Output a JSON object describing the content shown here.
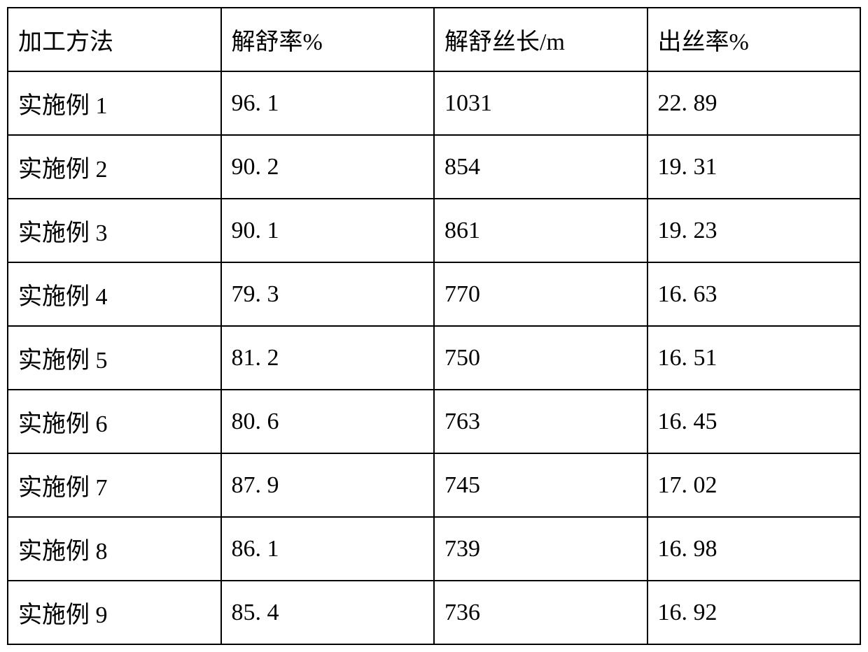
{
  "table": {
    "border_color": "#000000",
    "background_color": "#ffffff",
    "text_color": "#000000",
    "font_family": "SimSun",
    "font_size": 34,
    "border_width": 2,
    "cell_padding_vertical": 20,
    "cell_padding_horizontal": 14,
    "column_widths": [
      "25%",
      "25%",
      "25%",
      "25%"
    ],
    "columns": [
      "加工方法",
      "解舒率%",
      "解舒丝长/m",
      "出丝率%"
    ],
    "rows": [
      [
        "实施例 1",
        "96. 1",
        "1031",
        "22. 89"
      ],
      [
        "实施例 2",
        "90. 2",
        "854",
        "19. 31"
      ],
      [
        "实施例 3",
        "90. 1",
        "861",
        "19. 23"
      ],
      [
        "实施例 4",
        "79. 3",
        "770",
        "16. 63"
      ],
      [
        "实施例 5",
        "81. 2",
        "750",
        "16. 51"
      ],
      [
        "实施例 6",
        "80. 6",
        "763",
        "16. 45"
      ],
      [
        "实施例 7",
        "87. 9",
        "745",
        "17. 02"
      ],
      [
        "实施例 8",
        "86. 1",
        "739",
        "16. 98"
      ],
      [
        "实施例 9",
        "85. 4",
        "736",
        "16. 92"
      ]
    ]
  }
}
